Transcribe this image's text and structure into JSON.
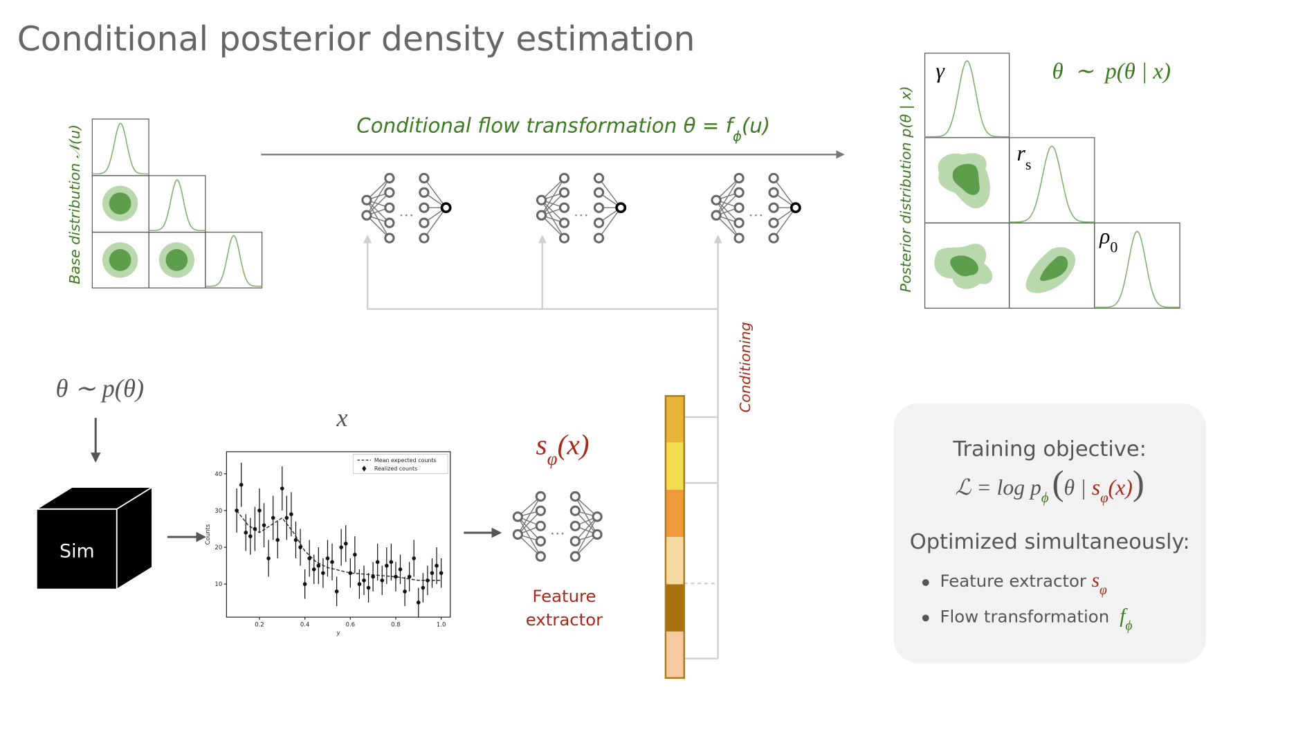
{
  "title": "Conditional posterior density estimation",
  "base_distribution": {
    "label": "Base distribution 𝒩(u)"
  },
  "flow": {
    "label": [
      "Conditional flow transformation θ = f",
      "ϕ",
      "(u)"
    ]
  },
  "posterior": {
    "label": "Posterior distribution p(θ | x)",
    "parameters": [
      {
        "symbol": "γ"
      },
      {
        "symbol": "r",
        "subscript": "s"
      },
      {
        "symbol": "ρ",
        "subscript": "0"
      }
    ],
    "sample": "θ  ∼  p(θ | x)"
  },
  "prior": "θ ∼ p(θ)",
  "data_label": "x",
  "simulator": "Sim",
  "summary": [
    "s",
    "φ",
    "(x)"
  ],
  "feature_extractor": [
    "Feature",
    "extractor"
  ],
  "conditioning": "Conditioning",
  "training": {
    "heading": "Training objective:",
    "objective": [
      "ℒ = log p",
      "ϕ",
      "(",
      "θ | ",
      "s",
      "φ",
      "(x)",
      ")"
    ],
    "subheading": "Optimized simultaneously:",
    "bullets": [
      [
        "Feature extractor ",
        "s",
        "φ"
      ],
      [
        "Flow transformation ",
        "f",
        "ϕ"
      ]
    ]
  },
  "chart_data": {
    "type": "scatter",
    "xlabel": "y",
    "ylabel": "Counts",
    "xlim": [
      0.055,
      1.04
    ],
    "ylim": [
      1,
      46
    ],
    "xticks": [
      0.2,
      0.4,
      0.6,
      0.8,
      {
        "value": 1,
        "label": "1.0"
      }
    ],
    "yticks": [
      10,
      20,
      30,
      40
    ],
    "legend": "upper right",
    "series": [
      {
        "name": "Mean expected counts",
        "type": "line",
        "color": "#333333",
        "x": [
          0.1,
          0.15,
          0.2,
          0.25,
          0.3,
          0.35,
          0.4,
          0.45,
          0.5,
          0.6,
          0.7,
          0.8,
          0.9,
          1.0
        ],
        "values": [
          30,
          26,
          24,
          26,
          28,
          24,
          19,
          16,
          14.5,
          13,
          12.5,
          12,
          11,
          11
        ]
      },
      {
        "name": "Realized counts",
        "type": "errorbar",
        "color": "#111111",
        "x": [
          0.1,
          0.12,
          0.14,
          0.16,
          0.18,
          0.2,
          0.22,
          0.24,
          0.26,
          0.28,
          0.3,
          0.32,
          0.34,
          0.36,
          0.38,
          0.4,
          0.42,
          0.44,
          0.46,
          0.48,
          0.5,
          0.52,
          0.54,
          0.56,
          0.58,
          0.6,
          0.62,
          0.64,
          0.66,
          0.68,
          0.7,
          0.72,
          0.74,
          0.76,
          0.78,
          0.8,
          0.82,
          0.84,
          0.86,
          0.88,
          0.9,
          0.92,
          0.94,
          0.96,
          0.98,
          1.0
        ],
        "values": [
          30,
          37,
          24,
          23,
          25,
          30,
          26,
          17,
          28,
          22,
          36,
          28,
          29,
          22,
          20,
          10,
          17,
          14,
          15,
          13,
          17,
          16,
          8,
          20,
          21,
          13,
          18,
          10,
          11,
          9,
          12,
          16,
          11,
          15,
          16,
          12,
          14,
          8,
          12,
          17,
          5,
          9,
          11,
          13,
          15,
          13
        ],
        "errors": [
          6,
          6,
          5,
          5,
          6,
          6,
          6,
          5,
          6,
          5,
          6,
          6,
          6,
          5,
          5,
          4,
          5,
          4,
          5,
          4,
          5,
          5,
          4,
          5,
          5,
          4,
          5,
          4,
          4,
          4,
          4,
          5,
          4,
          5,
          5,
          4,
          4,
          4,
          4,
          5,
          4,
          4,
          4,
          4,
          5,
          4
        ]
      }
    ]
  }
}
